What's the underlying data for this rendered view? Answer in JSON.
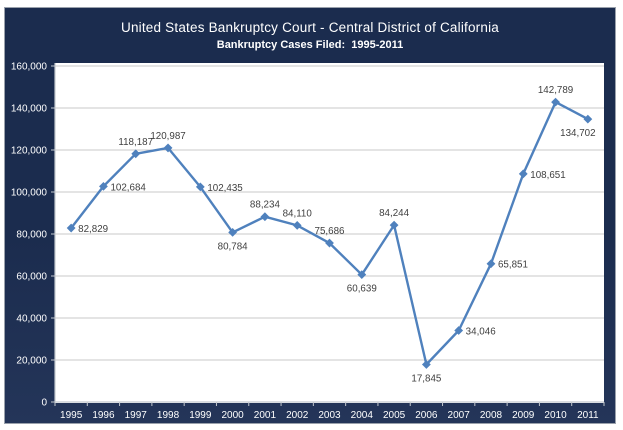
{
  "chart_data": {
    "type": "line",
    "title": "United States Bankruptcy Court - Central District of California",
    "subtitle": "Bankruptcy Cases Filed:  1995-2011",
    "categories": [
      "1995",
      "1996",
      "1997",
      "1998",
      "1999",
      "2000",
      "2001",
      "2002",
      "2003",
      "2004",
      "2005",
      "2006",
      "2007",
      "2008",
      "2009",
      "2010",
      "2011"
    ],
    "series": [
      {
        "name": "Bankruptcy Cases Filed",
        "values": [
          82829,
          102684,
          118187,
          120987,
          102435,
          80784,
          88234,
          84110,
          75686,
          60639,
          84244,
          17845,
          34046,
          65851,
          108651,
          142789,
          134702
        ]
      }
    ],
    "label_placements": [
      "right",
      "right",
      "above",
      "above",
      "right",
      "below",
      "above",
      "above",
      "above",
      "below",
      "above",
      "below",
      "right",
      "right",
      "right",
      "above",
      "below-left"
    ],
    "xlabel": "",
    "ylabel": "",
    "ylim": [
      0,
      160000
    ],
    "ytick_step": 20000,
    "grid": true,
    "legend": "none",
    "marker": "diamond",
    "colors": {
      "frame_top": "#1b2c4e",
      "frame_bottom": "#243559",
      "frame_border": "#9aa1ac",
      "plot_bg": "#ffffff",
      "gridline": "#c9c9c9",
      "axis": "#c2c7cd",
      "line": "#4f81bd",
      "marker_fill": "#4f81bd",
      "tick_label": "#ffffff",
      "title_text": "#ffffff",
      "data_label": "#3f3f3f"
    }
  }
}
